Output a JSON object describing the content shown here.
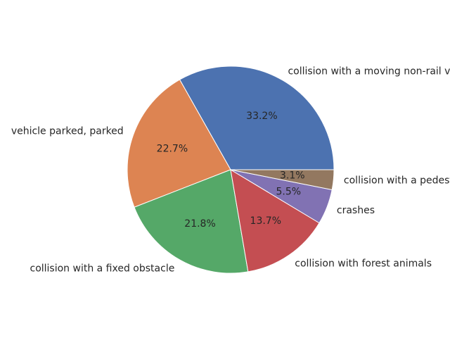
{
  "chart_data": {
    "type": "pie",
    "categories": [
      "collision with a moving non-rail vehicle",
      "vehicle parked, parked",
      "collision with a fixed obstacle",
      "collision with forest animals",
      "crashes",
      "collision with a pedestrian"
    ],
    "values": [
      33.2,
      22.7,
      21.8,
      13.7,
      5.5,
      3.1
    ],
    "value_labels": [
      "33.2%",
      "22.7%",
      "21.8%",
      "13.7%",
      "5.5%",
      "3.1%"
    ],
    "colors": [
      "#4c72b0",
      "#dd8452",
      "#55a868",
      "#c44e52",
      "#8172b3",
      "#937860"
    ],
    "start_angle_deg": 0,
    "direction": "counterclockwise",
    "title": "",
    "legend": "none"
  }
}
